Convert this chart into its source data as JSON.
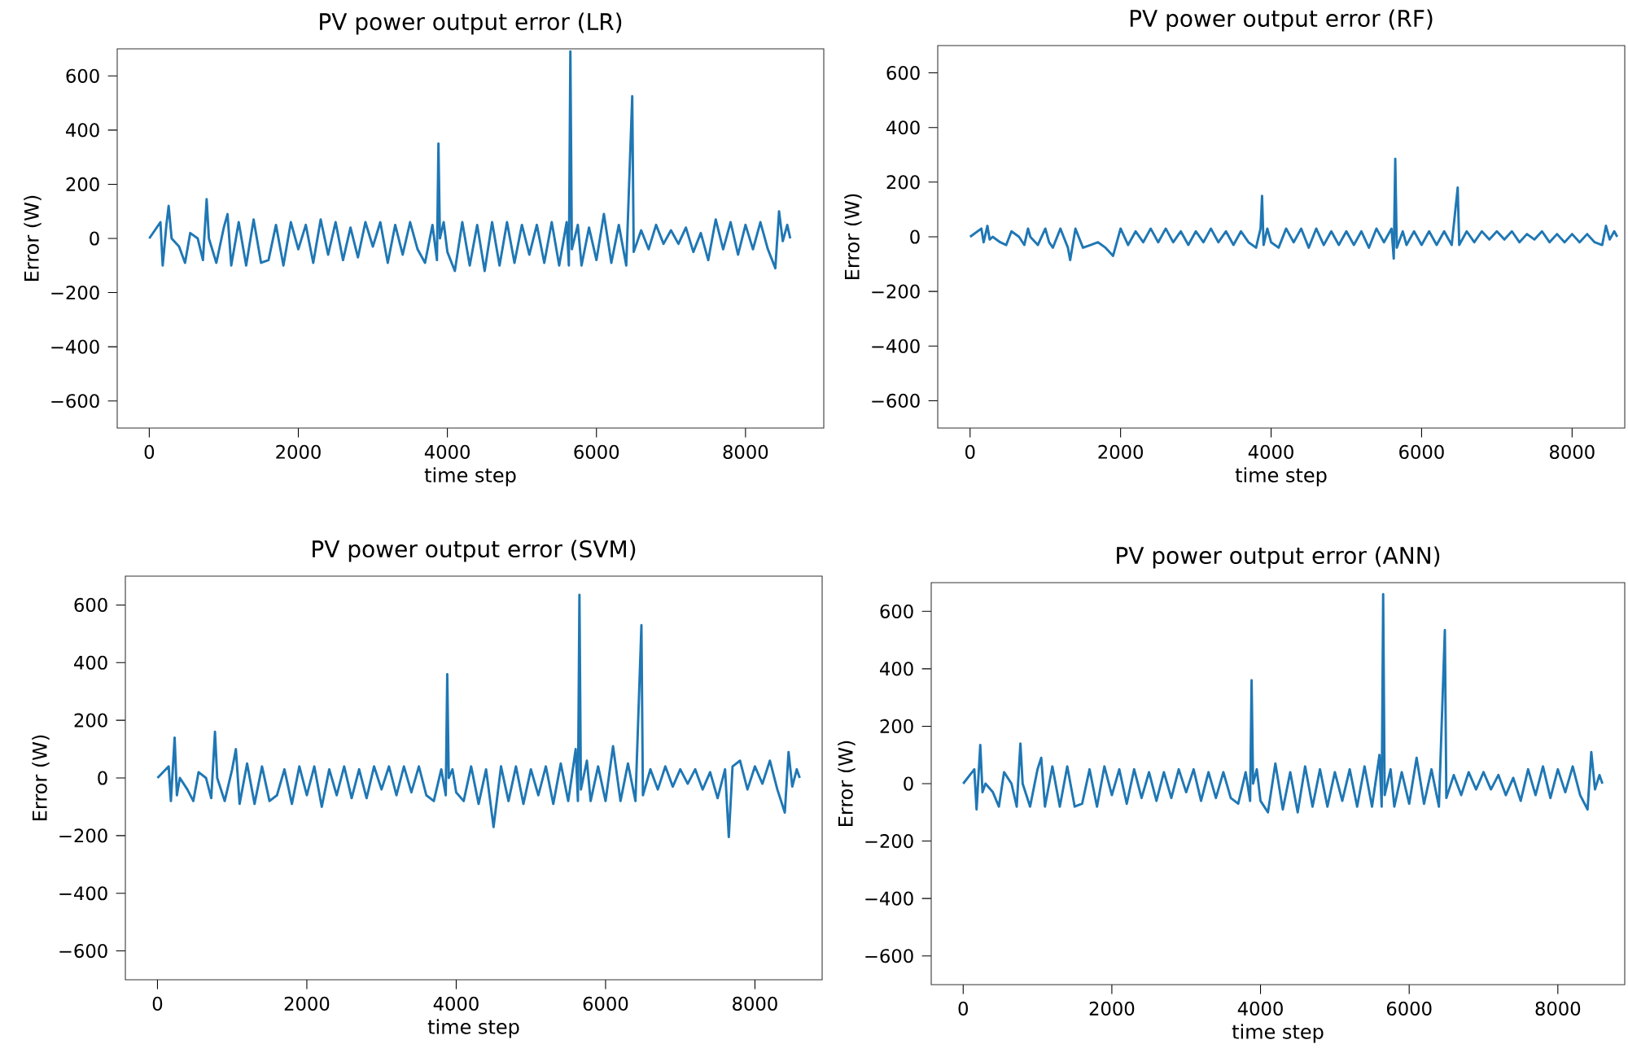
{
  "chart_data": [
    {
      "type": "line",
      "title": "PV power output error (LR)",
      "xlabel": "time step",
      "ylabel": "Error (W)",
      "color": "#1f77b4",
      "marker": "none",
      "line_style": "solid",
      "grid": false,
      "xlim": [
        -430,
        9050
      ],
      "ylim": [
        -700,
        700
      ],
      "xticks": [
        0,
        2000,
        4000,
        6000,
        8000
      ],
      "yticks": [
        {
          "value": -600,
          "label": "−600"
        },
        {
          "value": -400,
          "label": "−400"
        },
        {
          "value": -200,
          "label": "−200"
        },
        0,
        200,
        400,
        600
      ],
      "x": [
        0,
        150,
        180,
        230,
        260,
        300,
        400,
        480,
        550,
        650,
        720,
        770,
        800,
        900,
        1000,
        1050,
        1100,
        1200,
        1300,
        1400,
        1500,
        1600,
        1700,
        1800,
        1900,
        2000,
        2100,
        2200,
        2300,
        2400,
        2500,
        2600,
        2700,
        2800,
        2900,
        3000,
        3100,
        3200,
        3300,
        3400,
        3500,
        3600,
        3700,
        3800,
        3860,
        3880,
        3900,
        3950,
        4000,
        4100,
        4200,
        4300,
        4400,
        4500,
        4600,
        4700,
        4800,
        4900,
        5000,
        5100,
        5200,
        5300,
        5400,
        5500,
        5600,
        5630,
        5650,
        5670,
        5750,
        5800,
        5900,
        6000,
        6100,
        6200,
        6300,
        6400,
        6480,
        6500,
        6600,
        6700,
        6800,
        6900,
        7000,
        7100,
        7200,
        7300,
        7400,
        7500,
        7600,
        7700,
        7800,
        7900,
        8000,
        8100,
        8200,
        8300,
        8400,
        8450,
        8500,
        8560,
        8600
      ],
      "values": [
        0,
        60,
        -100,
        50,
        120,
        0,
        -30,
        -90,
        20,
        0,
        -80,
        145,
        0,
        -90,
        40,
        90,
        -100,
        60,
        -100,
        70,
        -90,
        -80,
        50,
        -100,
        60,
        -40,
        50,
        -90,
        70,
        -60,
        60,
        -80,
        40,
        -70,
        60,
        -30,
        60,
        -90,
        50,
        -60,
        60,
        -40,
        -90,
        50,
        -80,
        350,
        0,
        60,
        -50,
        -120,
        60,
        -100,
        50,
        -120,
        60,
        -100,
        60,
        -90,
        50,
        -60,
        50,
        -90,
        60,
        -100,
        60,
        -100,
        690,
        -40,
        50,
        -100,
        40,
        -80,
        90,
        -90,
        50,
        -100,
        525,
        -50,
        30,
        -40,
        50,
        -20,
        30,
        -20,
        40,
        -50,
        20,
        -80,
        70,
        -40,
        60,
        -60,
        50,
        -40,
        60,
        -40,
        -110,
        100,
        -10,
        50,
        0
      ]
    },
    {
      "type": "line",
      "title": "PV power output error (RF)",
      "xlabel": "time step",
      "ylabel": "Error (W)",
      "color": "#1f77b4",
      "marker": "none",
      "line_style": "solid",
      "grid": false,
      "xlim": [
        -430,
        8700
      ],
      "ylim": [
        -700,
        700
      ],
      "xticks": [
        0,
        2000,
        4000,
        6000,
        8000
      ],
      "yticks": [
        {
          "value": -600,
          "label": "−600"
        },
        {
          "value": -400,
          "label": "−400"
        },
        {
          "value": -200,
          "label": "−200"
        },
        0,
        200,
        400,
        600
      ],
      "x": [
        0,
        150,
        180,
        230,
        260,
        300,
        400,
        480,
        550,
        650,
        720,
        770,
        800,
        900,
        1000,
        1050,
        1100,
        1200,
        1300,
        1330,
        1400,
        1500,
        1600,
        1700,
        1800,
        1900,
        2000,
        2100,
        2200,
        2300,
        2400,
        2500,
        2600,
        2700,
        2800,
        2900,
        3000,
        3100,
        3200,
        3300,
        3400,
        3500,
        3600,
        3700,
        3800,
        3860,
        3880,
        3900,
        3950,
        4000,
        4100,
        4200,
        4300,
        4400,
        4500,
        4600,
        4700,
        4800,
        4900,
        5000,
        5100,
        5200,
        5300,
        5400,
        5500,
        5600,
        5630,
        5650,
        5670,
        5750,
        5800,
        5900,
        6000,
        6100,
        6200,
        6300,
        6400,
        6480,
        6500,
        6600,
        6700,
        6800,
        6900,
        7000,
        7100,
        7200,
        7300,
        7400,
        7500,
        7600,
        7700,
        7800,
        7900,
        8000,
        8100,
        8200,
        8300,
        8400,
        8450,
        8500,
        8560,
        8600
      ],
      "values": [
        0,
        30,
        -20,
        40,
        -10,
        0,
        -20,
        -30,
        20,
        0,
        -30,
        30,
        0,
        -30,
        30,
        -20,
        -40,
        30,
        -40,
        -85,
        30,
        -40,
        -30,
        -20,
        -40,
        -70,
        30,
        -30,
        20,
        -20,
        30,
        -20,
        30,
        -20,
        20,
        -30,
        20,
        -20,
        30,
        -20,
        20,
        -30,
        20,
        -20,
        -40,
        30,
        150,
        -30,
        30,
        -20,
        -40,
        30,
        -20,
        30,
        -40,
        30,
        -30,
        20,
        -30,
        20,
        -30,
        20,
        -40,
        30,
        -20,
        30,
        -80,
        285,
        -40,
        20,
        -30,
        20,
        -30,
        20,
        -30,
        20,
        -30,
        180,
        -30,
        20,
        -20,
        20,
        -10,
        20,
        -10,
        20,
        -20,
        10,
        -10,
        20,
        -20,
        10,
        -20,
        10,
        -20,
        10,
        -20,
        -30,
        40,
        -10,
        20,
        0
      ]
    },
    {
      "type": "line",
      "title": "PV power output error (SVM)",
      "xlabel": "time step",
      "ylabel": "Error (W)",
      "color": "#1f77b4",
      "marker": "none",
      "line_style": "solid",
      "grid": false,
      "xlim": [
        -430,
        8900
      ],
      "ylim": [
        -700,
        700
      ],
      "xticks": [
        0,
        2000,
        4000,
        6000,
        8000
      ],
      "yticks": [
        {
          "value": -600,
          "label": "−600"
        },
        {
          "value": -400,
          "label": "−400"
        },
        {
          "value": -200,
          "label": "−200"
        },
        0,
        200,
        400,
        600
      ],
      "x": [
        0,
        150,
        180,
        230,
        260,
        300,
        400,
        480,
        550,
        650,
        720,
        770,
        800,
        900,
        1000,
        1050,
        1100,
        1200,
        1300,
        1400,
        1500,
        1600,
        1700,
        1800,
        1900,
        2000,
        2100,
        2200,
        2300,
        2400,
        2500,
        2600,
        2700,
        2800,
        2900,
        3000,
        3100,
        3200,
        3300,
        3400,
        3500,
        3600,
        3700,
        3800,
        3860,
        3880,
        3900,
        3950,
        4000,
        4100,
        4200,
        4300,
        4400,
        4500,
        4600,
        4700,
        4800,
        4900,
        5000,
        5100,
        5200,
        5300,
        5400,
        5500,
        5600,
        5630,
        5650,
        5670,
        5750,
        5800,
        5900,
        6000,
        6100,
        6200,
        6300,
        6400,
        6480,
        6500,
        6600,
        6700,
        6800,
        6900,
        7000,
        7100,
        7200,
        7300,
        7400,
        7500,
        7600,
        7650,
        7700,
        7800,
        7900,
        8000,
        8100,
        8200,
        8300,
        8400,
        8450,
        8500,
        8560,
        8600
      ],
      "values": [
        0,
        40,
        -80,
        140,
        -60,
        0,
        -40,
        -80,
        20,
        0,
        -70,
        160,
        0,
        -80,
        30,
        100,
        -90,
        50,
        -90,
        40,
        -80,
        -60,
        30,
        -90,
        40,
        -60,
        40,
        -100,
        30,
        -60,
        40,
        -70,
        30,
        -70,
        40,
        -40,
        40,
        -60,
        40,
        -50,
        40,
        -60,
        -80,
        30,
        -60,
        360,
        0,
        30,
        -50,
        -80,
        40,
        -90,
        30,
        -170,
        40,
        -80,
        40,
        -90,
        30,
        -60,
        40,
        -90,
        50,
        -80,
        100,
        -80,
        635,
        -40,
        60,
        -80,
        40,
        -80,
        110,
        -80,
        50,
        -80,
        530,
        -60,
        30,
        -40,
        40,
        -30,
        30,
        -20,
        30,
        -40,
        20,
        -70,
        30,
        -205,
        40,
        60,
        -40,
        40,
        -20,
        60,
        -40,
        -120,
        90,
        -30,
        30,
        0
      ]
    },
    {
      "type": "line",
      "title": "PV power output error (ANN)",
      "xlabel": "time step",
      "ylabel": "Error (W)",
      "color": "#1f77b4",
      "marker": "none",
      "line_style": "solid",
      "grid": false,
      "xlim": [
        -430,
        8900
      ],
      "ylim": [
        -700,
        700
      ],
      "xticks": [
        0,
        2000,
        4000,
        6000,
        8000
      ],
      "yticks": [
        {
          "value": -600,
          "label": "−600"
        },
        {
          "value": -400,
          "label": "−400"
        },
        {
          "value": -200,
          "label": "−200"
        },
        0,
        200,
        400,
        600
      ],
      "x": [
        0,
        150,
        180,
        230,
        260,
        300,
        400,
        480,
        550,
        650,
        720,
        770,
        800,
        900,
        1000,
        1050,
        1100,
        1200,
        1300,
        1400,
        1500,
        1600,
        1700,
        1800,
        1900,
        2000,
        2100,
        2200,
        2300,
        2400,
        2500,
        2600,
        2700,
        2800,
        2900,
        3000,
        3100,
        3200,
        3300,
        3400,
        3500,
        3600,
        3700,
        3800,
        3860,
        3880,
        3900,
        3950,
        4000,
        4100,
        4200,
        4300,
        4400,
        4500,
        4600,
        4700,
        4800,
        4900,
        5000,
        5100,
        5200,
        5300,
        5400,
        5500,
        5600,
        5630,
        5650,
        5670,
        5750,
        5800,
        5900,
        6000,
        6100,
        6200,
        6300,
        6400,
        6480,
        6500,
        6600,
        6700,
        6800,
        6900,
        7000,
        7100,
        7200,
        7300,
        7400,
        7500,
        7600,
        7700,
        7800,
        7900,
        8000,
        8100,
        8200,
        8300,
        8400,
        8450,
        8500,
        8560,
        8600
      ],
      "values": [
        0,
        50,
        -90,
        135,
        -30,
        0,
        -30,
        -80,
        40,
        0,
        -80,
        140,
        0,
        -80,
        50,
        90,
        -80,
        60,
        -80,
        60,
        -80,
        -70,
        50,
        -80,
        60,
        -40,
        50,
        -70,
        50,
        -50,
        40,
        -60,
        40,
        -50,
        50,
        -30,
        50,
        -60,
        40,
        -50,
        40,
        -50,
        -70,
        40,
        -60,
        360,
        0,
        50,
        -60,
        -100,
        70,
        -90,
        40,
        -100,
        60,
        -80,
        50,
        -80,
        40,
        -60,
        50,
        -80,
        60,
        -80,
        100,
        -80,
        660,
        -40,
        50,
        -80,
        40,
        -70,
        90,
        -70,
        50,
        -80,
        535,
        -50,
        30,
        -40,
        40,
        -20,
        40,
        -20,
        30,
        -40,
        20,
        -60,
        50,
        -40,
        60,
        -50,
        50,
        -30,
        60,
        -40,
        -90,
        110,
        -20,
        30,
        0
      ]
    }
  ]
}
